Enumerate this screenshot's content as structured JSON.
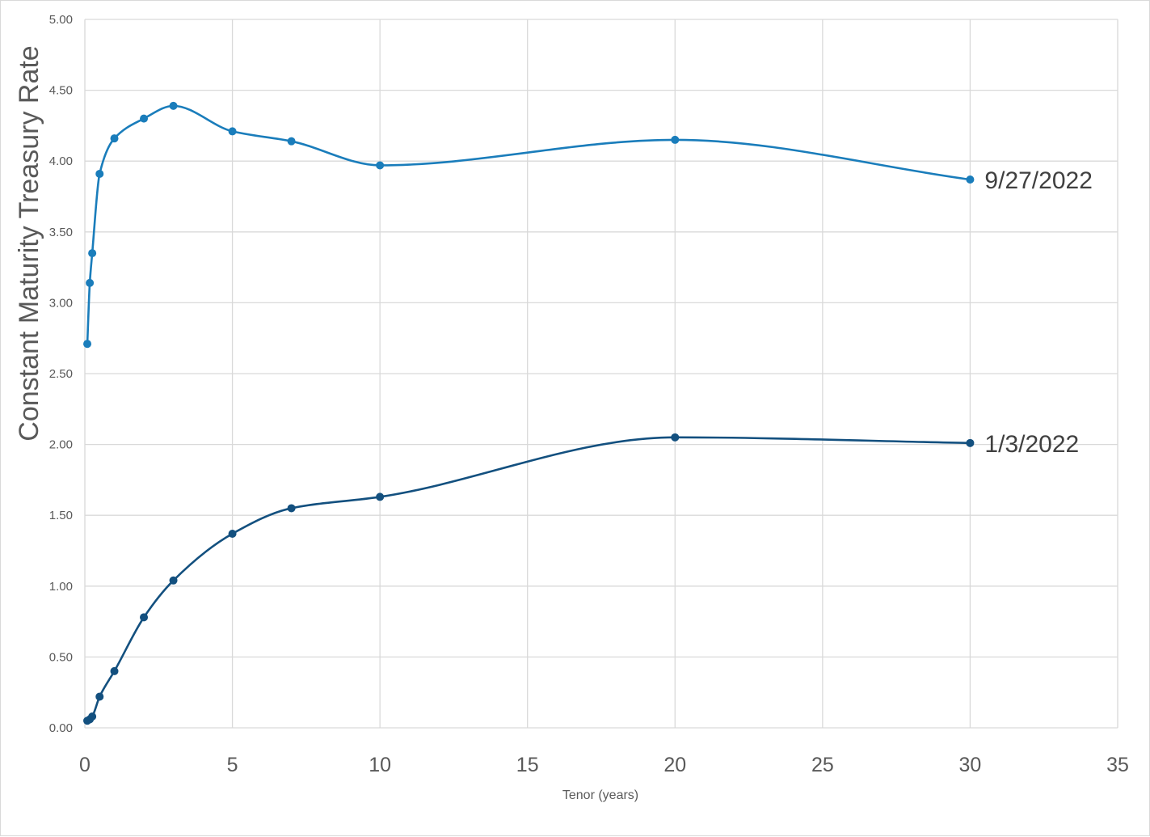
{
  "chart_data": {
    "type": "line",
    "title": "",
    "xlabel": "Tenor (years)",
    "ylabel": "Constant Maturity Treasury Rate",
    "xlim": [
      0,
      35
    ],
    "ylim": [
      0,
      5
    ],
    "xticks": [
      "0",
      "5",
      "10",
      "15",
      "20",
      "25",
      "30",
      "35"
    ],
    "yticks": [
      "0.00",
      "0.50",
      "1.00",
      "1.50",
      "2.00",
      "2.50",
      "3.00",
      "3.50",
      "4.00",
      "4.50",
      "5.00"
    ],
    "grid": true,
    "smoothed": true,
    "series": [
      {
        "name": "9/27/2022",
        "color": "#1a7dbb",
        "x": [
          0.083,
          0.167,
          0.25,
          0.5,
          1,
          2,
          3,
          5,
          7,
          10,
          20,
          30
        ],
        "y": [
          2.71,
          3.14,
          3.35,
          3.91,
          4.16,
          4.3,
          4.39,
          4.21,
          4.14,
          3.97,
          4.15,
          3.87
        ]
      },
      {
        "name": "1/3/2022",
        "color": "#13507f",
        "x": [
          0.083,
          0.167,
          0.25,
          0.5,
          1,
          2,
          3,
          5,
          7,
          10,
          20,
          30
        ],
        "y": [
          0.05,
          0.06,
          0.08,
          0.22,
          0.4,
          0.78,
          1.04,
          1.37,
          1.55,
          1.63,
          2.05,
          2.01
        ]
      }
    ]
  }
}
